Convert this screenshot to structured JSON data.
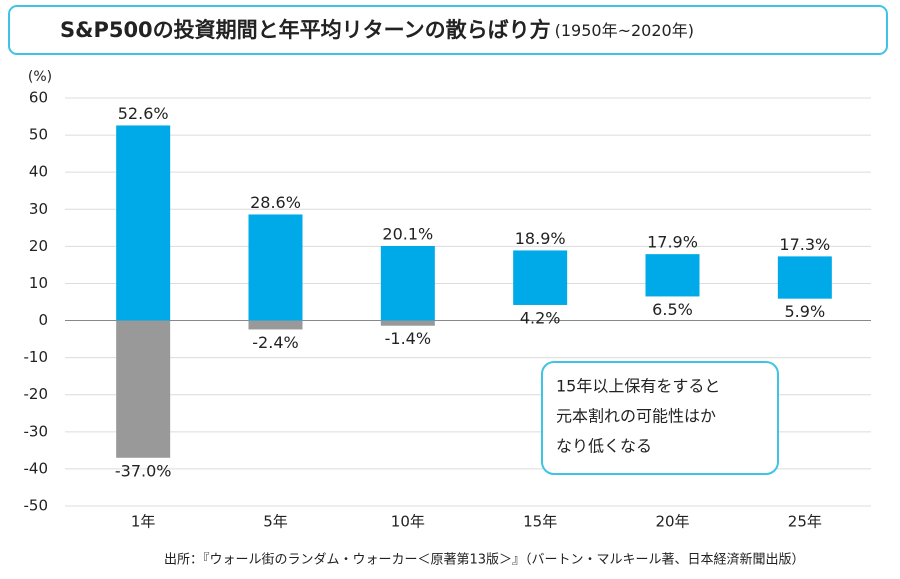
{
  "chart_data": {
    "type": "range-bar",
    "title": "S&P500の投資期間と年平均リターンの散らばり方",
    "subtitle": "(1950年~2020年)",
    "y_label": "(%)",
    "categories": [
      "1年",
      "5年",
      "10年",
      "15年",
      "20年",
      "25年"
    ],
    "high": {
      "values": [
        52.6,
        28.6,
        20.1,
        18.9,
        17.9,
        17.3
      ],
      "value_labels": [
        "52.6%",
        "28.6%",
        "20.1%",
        "18.9%",
        "17.9%",
        "17.3%"
      ]
    },
    "low": {
      "values": [
        -37.0,
        -2.4,
        -1.4,
        4.2,
        6.5,
        5.9
      ],
      "value_labels": [
        "-37.0%",
        "-2.4%",
        "-1.4%",
        "4.2%",
        "6.5%",
        "5.9%"
      ]
    },
    "color_positive": "#00a9e8",
    "color_negative": "#999999",
    "ylim": [
      -50,
      60
    ],
    "yticks": [
      -50,
      -40,
      -30,
      -20,
      -10,
      0,
      10,
      20,
      30,
      40,
      50,
      60
    ],
    "grid": true,
    "annotation": [
      "15年以上保有をすると",
      "元本割れの可能性はか",
      "なり低くなる"
    ],
    "source": "出所：『ウォール街のランダム・ウォーカー＜原著第13版＞』（バートン・マルキール著、日本経済新聞出版）"
  }
}
